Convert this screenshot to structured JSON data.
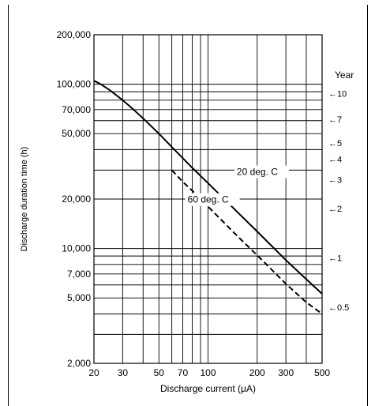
{
  "chart_data": {
    "type": "line",
    "title": "",
    "xlabel": "Discharge current  (μA)",
    "ylabel": "Discharge duration time (h)",
    "x_scale": "log",
    "y_scale": "log",
    "xlim": [
      20,
      500
    ],
    "ylim": [
      2000,
      200000
    ],
    "x_ticks": [
      {
        "value": 20,
        "label": "20"
      },
      {
        "value": 30,
        "label": "30"
      },
      {
        "value": 50,
        "label": "50"
      },
      {
        "value": 70,
        "label": "70"
      },
      {
        "value": 100,
        "label": "100"
      },
      {
        "value": 200,
        "label": "200"
      },
      {
        "value": 300,
        "label": "300"
      },
      {
        "value": 500,
        "label": "500"
      }
    ],
    "x_grid": [
      20,
      30,
      40,
      50,
      60,
      70,
      80,
      90,
      100,
      200,
      300,
      400,
      500
    ],
    "y_ticks": [
      {
        "value": 2000,
        "label": "2,000"
      },
      {
        "value": 5000,
        "label": "5,000"
      },
      {
        "value": 7000,
        "label": "7,000"
      },
      {
        "value": 10000,
        "label": "10,000"
      },
      {
        "value": 20000,
        "label": "20,000"
      },
      {
        "value": 50000,
        "label": "50,000"
      },
      {
        "value": 70000,
        "label": "70,000"
      },
      {
        "value": 100000,
        "label": "100,000"
      },
      {
        "value": 200000,
        "label": "200,000"
      }
    ],
    "y_grid": [
      2000,
      3000,
      4000,
      5000,
      6000,
      7000,
      8000,
      9000,
      10000,
      20000,
      30000,
      40000,
      50000,
      60000,
      70000,
      80000,
      90000,
      100000,
      200000
    ],
    "grid": true,
    "series": [
      {
        "name": "20 deg. C",
        "style": "solid",
        "color": "#000000",
        "x": [
          20,
          22,
          25,
          30,
          35,
          40,
          50,
          60,
          70,
          80,
          100,
          150,
          200,
          300,
          400,
          500
        ],
        "y": [
          105000,
          100000,
          92000,
          80000,
          70000,
          62000,
          50000,
          41500,
          35500,
          31000,
          25000,
          16800,
          12700,
          8500,
          6500,
          5300
        ]
      },
      {
        "name": "60 deg. C",
        "style": "dashed",
        "color": "#000000",
        "x": [
          60,
          70,
          80,
          100,
          150,
          200,
          300,
          400,
          500
        ],
        "y": [
          30000,
          25500,
          22500,
          18000,
          12000,
          9100,
          6100,
          4700,
          4000
        ]
      }
    ],
    "series_labels": [
      {
        "text": "20 deg. C",
        "x": 150,
        "y": 28000
      },
      {
        "text": "60 deg. C",
        "x": 75,
        "y": 19000
      }
    ],
    "year_axis": {
      "title": "Year",
      "markers": [
        {
          "label": "10",
          "hours": 87600
        },
        {
          "label": "7",
          "hours": 61320
        },
        {
          "label": "5",
          "hours": 43800
        },
        {
          "label": "4",
          "hours": 35040
        },
        {
          "label": "3",
          "hours": 26280
        },
        {
          "label": "2",
          "hours": 17520
        },
        {
          "label": "1",
          "hours": 8760
        },
        {
          "label": "0.5",
          "hours": 4380
        }
      ]
    }
  }
}
